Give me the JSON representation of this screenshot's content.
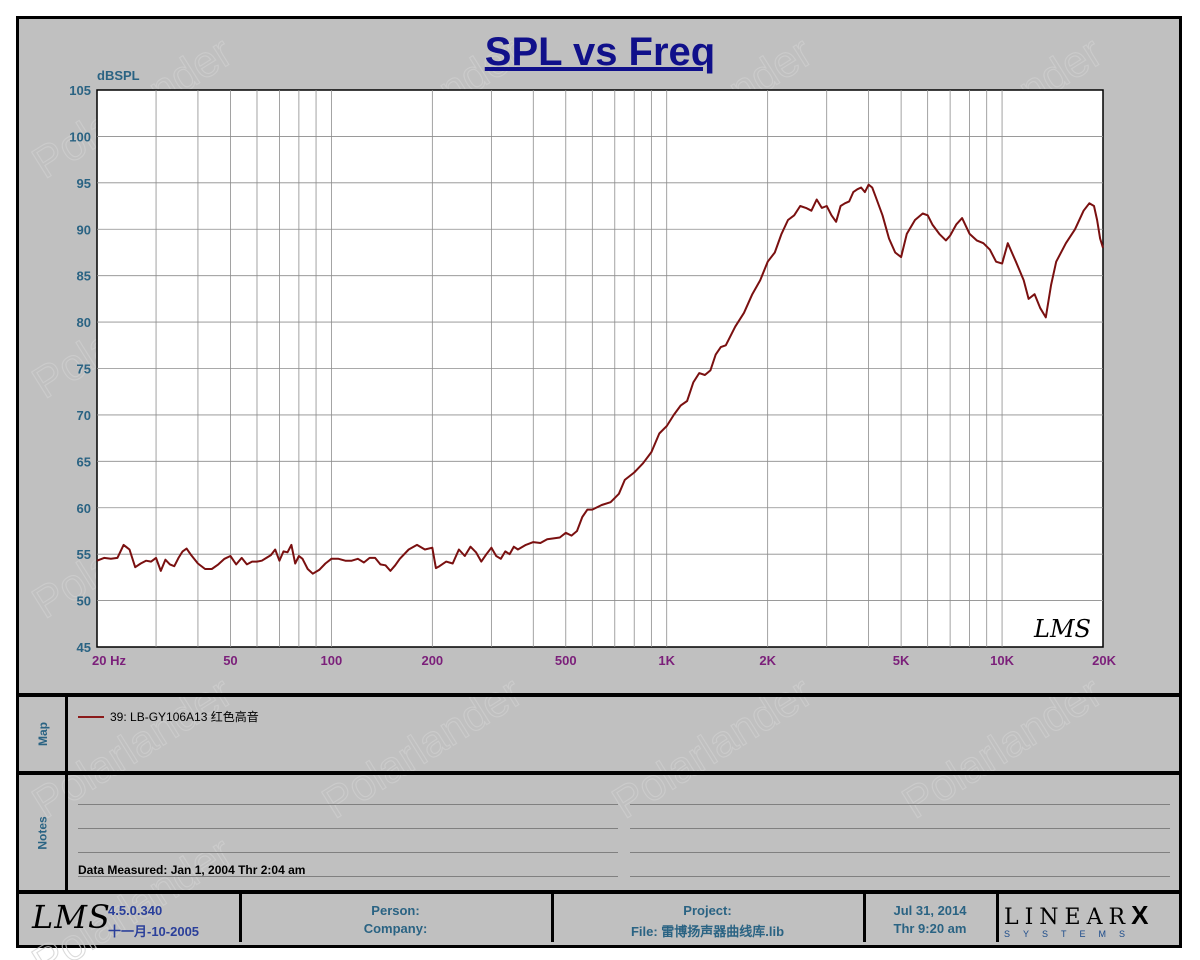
{
  "chart_data": {
    "type": "line",
    "title": "SPL vs Freq",
    "ylabel": "dBSPL",
    "xlabel": "",
    "x_scale": "log",
    "xlim": [
      20,
      20000
    ],
    "ylim": [
      45,
      105
    ],
    "grid": true,
    "yticks": [
      "105",
      "100",
      "95",
      "90",
      "85",
      "80",
      "75",
      "70",
      "65",
      "60",
      "55",
      "50",
      "45"
    ],
    "xtick_labels": [
      {
        "f": 20,
        "label": "20  Hz"
      },
      {
        "f": 50,
        "label": "50"
      },
      {
        "f": 100,
        "label": "100"
      },
      {
        "f": 200,
        "label": "200"
      },
      {
        "f": 500,
        "label": "500"
      },
      {
        "f": 1000,
        "label": "1K"
      },
      {
        "f": 2000,
        "label": "2K"
      },
      {
        "f": 5000,
        "label": "5K"
      },
      {
        "f": 10000,
        "label": "10K"
      },
      {
        "f": 20000,
        "label": "20K"
      }
    ],
    "series": [
      {
        "name": "39: LB-GY106A13 红色高音",
        "color": "#7a1010",
        "points": [
          [
            20,
            54.3
          ],
          [
            21,
            54.6
          ],
          [
            22,
            54.5
          ],
          [
            23,
            54.6
          ],
          [
            24,
            56.0
          ],
          [
            25,
            55.5
          ],
          [
            26,
            53.6
          ],
          [
            27,
            54.0
          ],
          [
            28,
            54.3
          ],
          [
            29,
            54.2
          ],
          [
            30,
            54.6
          ],
          [
            31,
            53.2
          ],
          [
            32,
            54.4
          ],
          [
            33,
            53.9
          ],
          [
            34,
            53.7
          ],
          [
            35,
            54.6
          ],
          [
            36,
            55.3
          ],
          [
            37,
            55.6
          ],
          [
            38,
            55.0
          ],
          [
            40,
            54.0
          ],
          [
            42,
            53.4
          ],
          [
            44,
            53.4
          ],
          [
            46,
            53.9
          ],
          [
            48,
            54.5
          ],
          [
            50,
            54.8
          ],
          [
            52,
            53.9
          ],
          [
            54,
            54.6
          ],
          [
            56,
            53.9
          ],
          [
            58,
            54.2
          ],
          [
            60,
            54.2
          ],
          [
            62,
            54.3
          ],
          [
            64,
            54.6
          ],
          [
            66,
            54.9
          ],
          [
            68,
            55.5
          ],
          [
            70,
            54.3
          ],
          [
            72,
            55.3
          ],
          [
            74,
            55.2
          ],
          [
            76,
            56.0
          ],
          [
            78,
            54.0
          ],
          [
            80,
            54.8
          ],
          [
            82,
            54.5
          ],
          [
            85,
            53.4
          ],
          [
            88,
            52.9
          ],
          [
            92,
            53.3
          ],
          [
            96,
            54.0
          ],
          [
            100,
            54.5
          ],
          [
            105,
            54.5
          ],
          [
            110,
            54.3
          ],
          [
            115,
            54.3
          ],
          [
            120,
            54.5
          ],
          [
            125,
            54.1
          ],
          [
            130,
            54.6
          ],
          [
            135,
            54.6
          ],
          [
            140,
            53.9
          ],
          [
            145,
            53.8
          ],
          [
            150,
            53.2
          ],
          [
            155,
            53.8
          ],
          [
            160,
            54.5
          ],
          [
            170,
            55.5
          ],
          [
            180,
            56.0
          ],
          [
            190,
            55.5
          ],
          [
            200,
            55.7
          ],
          [
            205,
            53.5
          ],
          [
            210,
            53.7
          ],
          [
            220,
            54.2
          ],
          [
            230,
            54.0
          ],
          [
            240,
            55.5
          ],
          [
            250,
            54.8
          ],
          [
            260,
            55.8
          ],
          [
            270,
            55.2
          ],
          [
            280,
            54.2
          ],
          [
            290,
            55.0
          ],
          [
            300,
            55.7
          ],
          [
            310,
            54.8
          ],
          [
            320,
            54.5
          ],
          [
            330,
            55.3
          ],
          [
            340,
            55.0
          ],
          [
            350,
            55.8
          ],
          [
            360,
            55.5
          ],
          [
            380,
            56.0
          ],
          [
            400,
            56.3
          ],
          [
            420,
            56.2
          ],
          [
            440,
            56.6
          ],
          [
            460,
            56.7
          ],
          [
            480,
            56.8
          ],
          [
            500,
            57.3
          ],
          [
            520,
            57.0
          ],
          [
            540,
            57.5
          ],
          [
            560,
            59.0
          ],
          [
            580,
            59.8
          ],
          [
            600,
            59.8
          ],
          [
            640,
            60.3
          ],
          [
            680,
            60.6
          ],
          [
            720,
            61.5
          ],
          [
            750,
            63.0
          ],
          [
            800,
            63.8
          ],
          [
            850,
            64.8
          ],
          [
            900,
            66.0
          ],
          [
            950,
            68.0
          ],
          [
            1000,
            68.8
          ],
          [
            1050,
            70.0
          ],
          [
            1100,
            71.0
          ],
          [
            1150,
            71.5
          ],
          [
            1200,
            73.5
          ],
          [
            1250,
            74.5
          ],
          [
            1300,
            74.3
          ],
          [
            1350,
            74.8
          ],
          [
            1400,
            76.5
          ],
          [
            1450,
            77.3
          ],
          [
            1500,
            77.5
          ],
          [
            1600,
            79.5
          ],
          [
            1700,
            81.0
          ],
          [
            1800,
            83.0
          ],
          [
            1900,
            84.5
          ],
          [
            2000,
            86.5
          ],
          [
            2100,
            87.5
          ],
          [
            2200,
            89.5
          ],
          [
            2300,
            91.0
          ],
          [
            2400,
            91.5
          ],
          [
            2500,
            92.5
          ],
          [
            2600,
            92.3
          ],
          [
            2700,
            92.0
          ],
          [
            2800,
            93.2
          ],
          [
            2900,
            92.3
          ],
          [
            3000,
            92.5
          ],
          [
            3100,
            91.5
          ],
          [
            3200,
            90.8
          ],
          [
            3300,
            92.5
          ],
          [
            3400,
            92.8
          ],
          [
            3500,
            93.0
          ],
          [
            3600,
            94.0
          ],
          [
            3700,
            94.3
          ],
          [
            3800,
            94.5
          ],
          [
            3900,
            94.0
          ],
          [
            4000,
            94.8
          ],
          [
            4100,
            94.5
          ],
          [
            4200,
            93.5
          ],
          [
            4400,
            91.5
          ],
          [
            4600,
            89.0
          ],
          [
            4800,
            87.5
          ],
          [
            5000,
            87.0
          ],
          [
            5200,
            89.5
          ],
          [
            5500,
            91.0
          ],
          [
            5800,
            91.7
          ],
          [
            6000,
            91.5
          ],
          [
            6200,
            90.5
          ],
          [
            6500,
            89.5
          ],
          [
            6800,
            88.8
          ],
          [
            7000,
            89.3
          ],
          [
            7300,
            90.5
          ],
          [
            7600,
            91.2
          ],
          [
            8000,
            89.5
          ],
          [
            8400,
            88.8
          ],
          [
            8800,
            88.5
          ],
          [
            9200,
            87.8
          ],
          [
            9600,
            86.5
          ],
          [
            10000,
            86.3
          ],
          [
            10400,
            88.5
          ],
          [
            11000,
            86.5
          ],
          [
            11600,
            84.5
          ],
          [
            12000,
            82.5
          ],
          [
            12500,
            83.0
          ],
          [
            13000,
            81.5
          ],
          [
            13500,
            80.5
          ],
          [
            14000,
            84.0
          ],
          [
            14500,
            86.5
          ],
          [
            15500,
            88.5
          ],
          [
            16500,
            90.0
          ],
          [
            17500,
            92.0
          ],
          [
            18200,
            92.8
          ],
          [
            18800,
            92.5
          ],
          [
            19200,
            91.0
          ],
          [
            19600,
            89.0
          ],
          [
            20000,
            88.0
          ]
        ]
      }
    ]
  },
  "watermark": "Polarlander",
  "brand_mark": "LMS",
  "sections": {
    "map_label": "Map",
    "notes_label": "Notes",
    "data_measured": "Data Measured: Jan  1, 2004  Thr  2:04 am"
  },
  "footer": {
    "lms_logo": "LMS",
    "version": "4.5.0.340",
    "date_cn": "十一月-10-2005",
    "person_label": "Person:",
    "company_label": "Company:",
    "project_label": "Project:",
    "file_label": "File: 雷博扬声器曲线库.lib",
    "date": "Jul 31, 2014",
    "time": "Thr  9:20 am",
    "brand_main": "LINEAR",
    "brand_x": "X",
    "brand_sub": "SYSTEMS"
  }
}
